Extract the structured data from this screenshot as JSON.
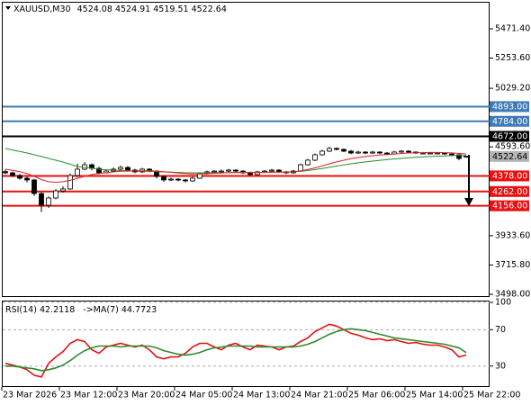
{
  "chart_data": [
    {
      "type": "candlestick",
      "title": "XAUUSD,M30",
      "categories": [
        "23 Mar 2026",
        null,
        null,
        null,
        null,
        null,
        null,
        null,
        "23 Mar 12:00",
        null,
        null,
        null,
        null,
        null,
        null,
        null,
        "23 Mar 20:00",
        null,
        null,
        null,
        null,
        null,
        null,
        null,
        "24 Mar 05:00",
        null,
        null,
        null,
        null,
        null,
        null,
        null,
        "24 Mar 13:00",
        null,
        null,
        null,
        null,
        null,
        null,
        null,
        "24 Mar 21:00",
        null,
        null,
        null,
        null,
        null,
        null,
        null,
        "25 Mar 06:00",
        null,
        null,
        null,
        null,
        null,
        null,
        null,
        "25 Mar 14:00",
        null,
        null,
        null,
        null,
        null,
        null,
        null,
        "25 Mar 22:00"
      ],
      "open": [
        4410,
        4401,
        4381,
        4361,
        4348,
        4247,
        4160,
        4214,
        4267,
        4281,
        4381,
        4428,
        4461,
        4434,
        4401,
        4414,
        4428,
        4441,
        4421,
        4408,
        4428,
        4414,
        4374,
        4348,
        4354,
        4348,
        4341,
        4361,
        4394,
        4408,
        4414,
        4414,
        4421,
        4414,
        4401,
        4388,
        4408,
        4414,
        4421,
        4408,
        4401,
        4414,
        4461,
        4495,
        4535,
        4562,
        4582,
        4575,
        4562,
        4548,
        4555,
        4548,
        4555,
        4548,
        4541,
        4555,
        4562,
        4555,
        4548,
        4548,
        4548,
        4548,
        4541,
        4535,
        4524.08
      ],
      "high": [
        4425,
        4410,
        4392,
        4372,
        4355,
        4255,
        4225,
        4280,
        4300,
        4395,
        4470,
        4480,
        4470,
        4445,
        4425,
        4440,
        4455,
        4450,
        4430,
        4438,
        4435,
        4420,
        4380,
        4365,
        4362,
        4355,
        4370,
        4402,
        4418,
        4422,
        4425,
        4430,
        4428,
        4420,
        4410,
        4416,
        4422,
        4430,
        4428,
        4415,
        4422,
        4470,
        4505,
        4545,
        4572,
        4595,
        4590,
        4582,
        4570,
        4565,
        4562,
        4565,
        4562,
        4555,
        4565,
        4570,
        4568,
        4560,
        4556,
        4556,
        4555,
        4552,
        4548,
        4540,
        4524.91
      ],
      "low": [
        4390,
        4370,
        4350,
        4330,
        4230,
        4110,
        4140,
        4205,
        4255,
        4275,
        4370,
        4420,
        4420,
        4390,
        4395,
        4405,
        4420,
        4412,
        4398,
        4400,
        4405,
        4360,
        4335,
        4340,
        4338,
        4330,
        4335,
        4355,
        4388,
        4400,
        4405,
        4408,
        4405,
        4392,
        4380,
        4382,
        4400,
        4408,
        4400,
        4392,
        4395,
        4408,
        4455,
        4488,
        4528,
        4555,
        4568,
        4555,
        4540,
        4542,
        4540,
        4542,
        4540,
        4535,
        4535,
        4550,
        4548,
        4542,
        4540,
        4540,
        4540,
        4535,
        4528,
        4495,
        4519.51
      ],
      "close": [
        4401,
        4381,
        4361,
        4348,
        4247,
        4160,
        4214,
        4267,
        4281,
        4381,
        4428,
        4461,
        4434,
        4401,
        4414,
        4428,
        4441,
        4421,
        4408,
        4428,
        4414,
        4374,
        4348,
        4354,
        4348,
        4341,
        4361,
        4394,
        4408,
        4414,
        4414,
        4421,
        4414,
        4401,
        4388,
        4408,
        4414,
        4421,
        4408,
        4401,
        4414,
        4461,
        4495,
        4535,
        4562,
        4582,
        4575,
        4562,
        4548,
        4555,
        4548,
        4555,
        4548,
        4541,
        4555,
        4562,
        4555,
        4548,
        4548,
        4548,
        4548,
        4541,
        4535,
        4508,
        4522.64
      ],
      "series": [
        {
          "color": "#2e8b2e",
          "values": [
            4582,
            4570,
            4560,
            4548,
            4535,
            4522,
            4508,
            4495,
            4481,
            4465,
            4448,
            4441,
            4435,
            4428,
            4424,
            4421,
            4418,
            4416,
            4414,
            4413,
            4412,
            4410,
            4408,
            4406,
            4404,
            4402,
            4401,
            4401,
            4401,
            4402,
            4402,
            4403,
            4403,
            4403,
            4403,
            4404,
            4404,
            4405,
            4406,
            4407,
            4408,
            4412,
            4418,
            4425,
            4433,
            4442,
            4451,
            4460,
            4468,
            4475,
            4482,
            4488,
            4494,
            4499,
            4504,
            4508,
            4512,
            4516,
            4519,
            4522,
            4525,
            4527,
            4529,
            4530,
            4530
          ]
        },
        {
          "color": "#e02020",
          "values": [
            4428,
            4420,
            4410,
            4395,
            4375,
            4350,
            4335,
            4330,
            4335,
            4345,
            4360,
            4375,
            4388,
            4396,
            4402,
            4408,
            4412,
            4414,
            4415,
            4416,
            4416,
            4414,
            4410,
            4405,
            4400,
            4395,
            4392,
            4392,
            4394,
            4397,
            4400,
            4403,
            4405,
            4405,
            4404,
            4404,
            4405,
            4406,
            4406,
            4406,
            4408,
            4415,
            4425,
            4438,
            4452,
            4468,
            4482,
            4495,
            4506,
            4515,
            4522,
            4528,
            4533,
            4537,
            4541,
            4545,
            4548,
            4550,
            4551,
            4552,
            4552,
            4551,
            4549,
            4545,
            4541
          ]
        }
      ],
      "levels": [
        {
          "value": 4893,
          "label": "4893.00",
          "color": "#3d7ab8"
        },
        {
          "value": 4784,
          "label": "4784.00",
          "color": "#3d7ab8"
        },
        {
          "value": 4672,
          "label": "4672.00",
          "color": "#000000"
        },
        {
          "value": 4378,
          "label": "4378.00",
          "color": "#e81010"
        },
        {
          "value": 4262,
          "label": "4262.00",
          "color": "#e81010"
        },
        {
          "value": 4156,
          "label": "4156.00",
          "color": "#e81010"
        }
      ],
      "ylim": [
        3478,
        5672
      ],
      "yticks": [
        {
          "value": 5471.4,
          "label": "5471.40"
        },
        {
          "value": 5253.6,
          "label": "5253.60"
        },
        {
          "value": 5029.2,
          "label": "5029.20"
        },
        {
          "value": 4593.6,
          "label": "4593.60"
        },
        {
          "value": 3933.6,
          "label": "3933.60"
        },
        {
          "value": 3715.8,
          "label": "3715.80"
        },
        {
          "value": 3498,
          "label": "3498.00"
        }
      ],
      "grid": false
    },
    {
      "type": "line",
      "series": [
        {
          "name": "RSI(14)",
          "color": "#e81010",
          "values": [
            33,
            31,
            29,
            26,
            20,
            18,
            33,
            40,
            46,
            55,
            59,
            57,
            48,
            44,
            51,
            53,
            55,
            53,
            51,
            53,
            48,
            40,
            38,
            40,
            40,
            44,
            51,
            55,
            55,
            51,
            48,
            53,
            55,
            51,
            48,
            53,
            52,
            51,
            48,
            51,
            52,
            57,
            61,
            68,
            72,
            76,
            74,
            70,
            66,
            64,
            61,
            59,
            60,
            58,
            59,
            57,
            55,
            56,
            54,
            53,
            53,
            51,
            48,
            40,
            42.2118
          ]
        },
        {
          "name": "->MA(7)",
          "color": "#2e8b2e",
          "values": [
            30,
            30,
            29,
            28,
            27,
            25,
            26,
            28,
            31,
            36,
            42,
            47,
            50,
            52,
            52,
            52,
            51,
            52,
            52,
            52,
            52,
            50,
            47,
            45,
            43,
            42,
            43,
            45,
            48,
            50,
            51,
            52,
            52,
            52,
            52,
            51,
            51,
            51,
            51,
            51,
            51,
            52,
            54,
            57,
            61,
            65,
            68,
            70,
            71,
            70,
            69,
            67,
            65,
            63,
            61,
            60,
            59,
            58,
            57,
            56,
            55,
            54,
            52,
            50,
            44.7723
          ]
        }
      ],
      "ylim": [
        7,
        101
      ],
      "yticks": [
        100,
        70,
        30
      ],
      "grid": true
    }
  ]
}
